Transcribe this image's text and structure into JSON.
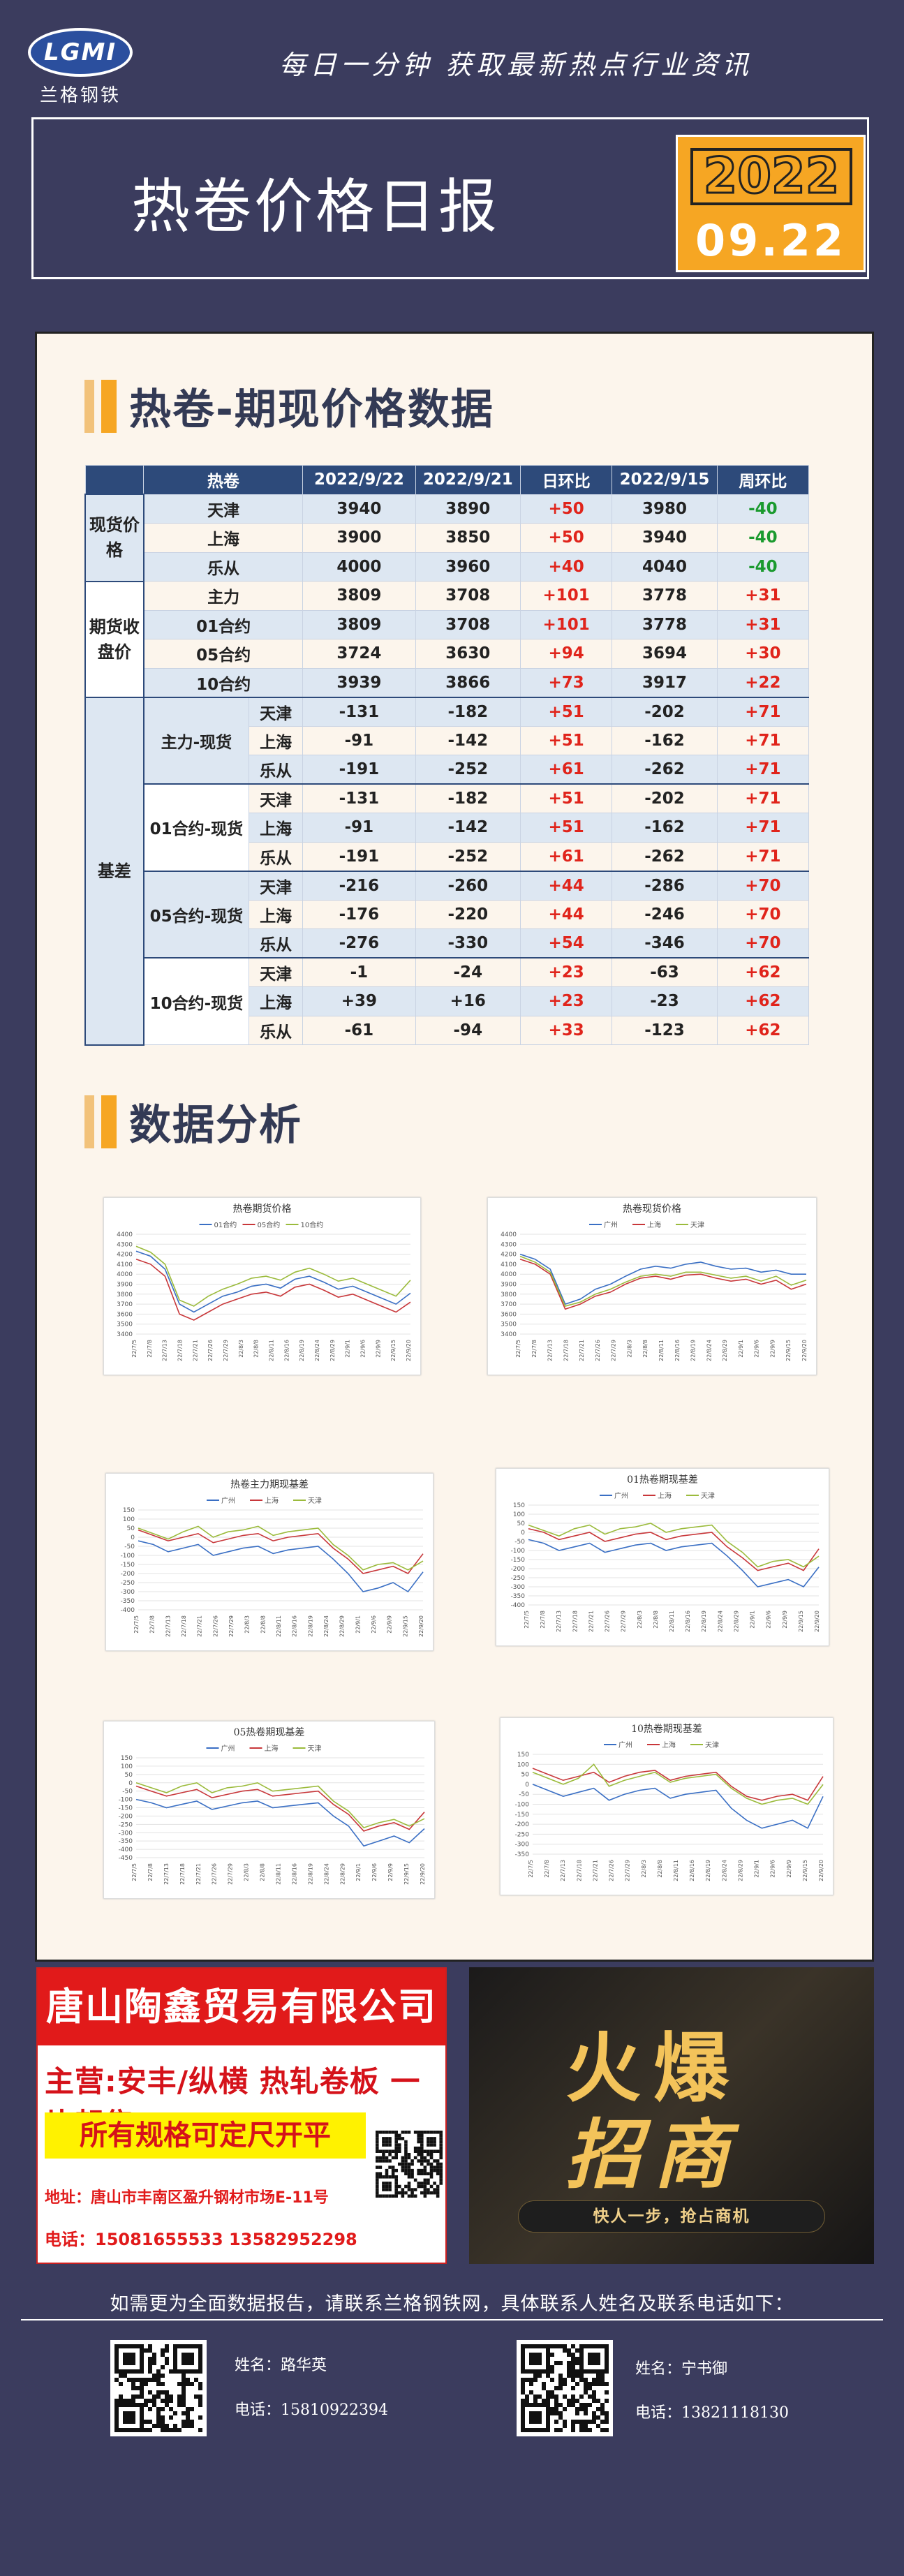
{
  "header": {
    "logo_text": "LGMI",
    "logo_cn": "兰格钢铁",
    "slogan": "每日一分钟  获取最新热点行业资讯",
    "title": "热卷价格日报",
    "year": "2022",
    "month_day": "09.22"
  },
  "section1": {
    "title": "热卷-期现价格数据"
  },
  "table": {
    "headers": [
      "热卷",
      "2022/9/22",
      "2022/9/21",
      "日环比",
      "2022/9/15",
      "周环比"
    ],
    "spot_group": "现货价格",
    "futures_group": "期货收盘价",
    "basis_group": "基差",
    "spot_rows": [
      {
        "label": "天津",
        "v1": "3940",
        "v2": "3890",
        "d": "+50",
        "v3": "3980",
        "w": "-40"
      },
      {
        "label": "上海",
        "v1": "3900",
        "v2": "3850",
        "d": "+50",
        "v3": "3940",
        "w": "-40"
      },
      {
        "label": "乐从",
        "v1": "4000",
        "v2": "3960",
        "d": "+40",
        "v3": "4040",
        "w": "-40"
      }
    ],
    "futures_rows": [
      {
        "label": "主力",
        "v1": "3809",
        "v2": "3708",
        "d": "+101",
        "v3": "3778",
        "w": "+31"
      },
      {
        "label": "01合约",
        "v1": "3809",
        "v2": "3708",
        "d": "+101",
        "v3": "3778",
        "w": "+31"
      },
      {
        "label": "05合约",
        "v1": "3724",
        "v2": "3630",
        "d": "+94",
        "v3": "3694",
        "w": "+30"
      },
      {
        "label": "10合约",
        "v1": "3939",
        "v2": "3866",
        "d": "+73",
        "v3": "3917",
        "w": "+22"
      }
    ],
    "basis_blocks": [
      {
        "label": "主力-现货",
        "rows": [
          {
            "city": "天津",
            "v1": "-131",
            "v2": "-182",
            "d": "+51",
            "v3": "-202",
            "w": "+71"
          },
          {
            "city": "上海",
            "v1": "-91",
            "v2": "-142",
            "d": "+51",
            "v3": "-162",
            "w": "+71"
          },
          {
            "city": "乐从",
            "v1": "-191",
            "v2": "-252",
            "d": "+61",
            "v3": "-262",
            "w": "+71"
          }
        ]
      },
      {
        "label": "01合约-现货",
        "rows": [
          {
            "city": "天津",
            "v1": "-131",
            "v2": "-182",
            "d": "+51",
            "v3": "-202",
            "w": "+71"
          },
          {
            "city": "上海",
            "v1": "-91",
            "v2": "-142",
            "d": "+51",
            "v3": "-162",
            "w": "+71"
          },
          {
            "city": "乐从",
            "v1": "-191",
            "v2": "-252",
            "d": "+61",
            "v3": "-262",
            "w": "+71"
          }
        ]
      },
      {
        "label": "05合约-现货",
        "rows": [
          {
            "city": "天津",
            "v1": "-216",
            "v2": "-260",
            "d": "+44",
            "v3": "-286",
            "w": "+70"
          },
          {
            "city": "上海",
            "v1": "-176",
            "v2": "-220",
            "d": "+44",
            "v3": "-246",
            "w": "+70"
          },
          {
            "city": "乐从",
            "v1": "-276",
            "v2": "-330",
            "d": "+54",
            "v3": "-346",
            "w": "+70"
          }
        ]
      },
      {
        "label": "10合约-现货",
        "rows": [
          {
            "city": "天津",
            "v1": "-1",
            "v2": "-24",
            "d": "+23",
            "v3": "-63",
            "w": "+62"
          },
          {
            "city": "上海",
            "v1": "+39",
            "v2": "+16",
            "d": "+23",
            "v3": "-23",
            "w": "+62"
          },
          {
            "city": "乐从",
            "v1": "-61",
            "v2": "-94",
            "d": "+33",
            "v3": "-123",
            "w": "+62"
          }
        ]
      }
    ]
  },
  "section2": {
    "title": "数据分析"
  },
  "colors": {
    "blue": "#3a6fc4",
    "red": "#c8373a",
    "green": "#9bbb3c",
    "accent": "#f6a623",
    "pos": "#e0241b",
    "neg": "#1a9a2e"
  },
  "chart_data": [
    {
      "type": "line",
      "title": "热卷期货价格",
      "legend": [
        "01合约",
        "05合约",
        "10合约"
      ],
      "yticks": [
        "4400",
        "4300",
        "4200",
        "4100",
        "4000",
        "3900",
        "3800",
        "3700",
        "3600",
        "3500",
        "3400"
      ],
      "ylim": [
        3400,
        4400
      ],
      "xticks": [
        "22/7/5",
        "22/7/8",
        "22/7/13",
        "22/7/18",
        "22/7/21",
        "22/7/26",
        "22/7/29",
        "22/8/3",
        "22/8/8",
        "22/8/11",
        "22/8/16",
        "22/8/19",
        "22/8/24",
        "22/8/29",
        "22/9/1",
        "22/9/6",
        "22/9/9",
        "22/9/15",
        "22/9/20"
      ],
      "series": [
        {
          "name": "01合约",
          "values": [
            4230,
            4180,
            4050,
            3700,
            3620,
            3700,
            3780,
            3820,
            3880,
            3900,
            3860,
            3950,
            3980,
            3920,
            3850,
            3880,
            3820,
            3760,
            3700,
            3810
          ]
        },
        {
          "name": "05合约",
          "values": [
            4150,
            4100,
            3980,
            3600,
            3540,
            3620,
            3700,
            3750,
            3800,
            3820,
            3780,
            3870,
            3900,
            3840,
            3770,
            3800,
            3740,
            3680,
            3620,
            3720
          ]
        },
        {
          "name": "10合约",
          "values": [
            4280,
            4220,
            4100,
            3740,
            3680,
            3780,
            3850,
            3900,
            3960,
            3980,
            3940,
            4020,
            4060,
            4000,
            3930,
            3960,
            3900,
            3840,
            3780,
            3940
          ]
        }
      ]
    },
    {
      "type": "line",
      "title": "热卷现货价格",
      "legend": [
        "广州",
        "上海",
        "天津"
      ],
      "yticks": [
        "4400",
        "4300",
        "4200",
        "4100",
        "4000",
        "3900",
        "3800",
        "3700",
        "3600",
        "3500",
        "3400"
      ],
      "ylim": [
        3400,
        4400
      ],
      "xticks": [
        "22/7/5",
        "22/7/8",
        "22/7/13",
        "22/7/18",
        "22/7/21",
        "22/7/26",
        "22/7/29",
        "22/8/3",
        "22/8/8",
        "22/8/11",
        "22/8/16",
        "22/8/19",
        "22/8/24",
        "22/8/29",
        "22/9/1",
        "22/9/6",
        "22/9/9",
        "22/9/15",
        "22/9/20"
      ],
      "series": [
        {
          "name": "广州",
          "values": [
            4200,
            4150,
            4050,
            3700,
            3750,
            3850,
            3900,
            3980,
            4050,
            4080,
            4060,
            4100,
            4120,
            4080,
            4050,
            4060,
            4020,
            4040,
            4000,
            4000
          ]
        },
        {
          "name": "上海",
          "values": [
            4150,
            4100,
            4000,
            3650,
            3700,
            3780,
            3820,
            3900,
            3960,
            3980,
            3950,
            3990,
            4000,
            3960,
            3930,
            3950,
            3900,
            3940,
            3850,
            3900
          ]
        },
        {
          "name": "天津",
          "values": [
            4180,
            4120,
            4020,
            3680,
            3720,
            3800,
            3850,
            3920,
            3980,
            4000,
            3980,
            4020,
            4020,
            3990,
            3960,
            3980,
            3930,
            3980,
            3890,
            3940
          ]
        }
      ]
    },
    {
      "type": "line",
      "title": "热卷主力期现基差",
      "legend": [
        "广州",
        "上海",
        "天津"
      ],
      "yticks": [
        "150",
        "100",
        "50",
        "0",
        "-50",
        "-100",
        "-150",
        "-200",
        "-250",
        "-300",
        "-350",
        "-400"
      ],
      "ylim": [
        -400,
        150
      ],
      "xticks": [
        "22/7/5",
        "22/7/8",
        "22/7/13",
        "22/7/18",
        "22/7/21",
        "22/7/26",
        "22/7/29",
        "22/8/3",
        "22/8/8",
        "22/8/11",
        "22/8/16",
        "22/8/19",
        "22/8/24",
        "22/8/29",
        "22/9/1",
        "22/9/6",
        "22/9/9",
        "22/9/15",
        "22/9/20"
      ],
      "series": [
        {
          "name": "广州",
          "values": [
            -20,
            -40,
            -80,
            -60,
            -40,
            -100,
            -80,
            -60,
            -50,
            -90,
            -70,
            -60,
            -50,
            -120,
            -200,
            -300,
            -280,
            -250,
            -300,
            -191
          ]
        },
        {
          "name": "上海",
          "values": [
            40,
            10,
            -20,
            0,
            20,
            -30,
            -10,
            10,
            20,
            -20,
            0,
            10,
            20,
            -60,
            -120,
            -200,
            -180,
            -160,
            -200,
            -91
          ]
        },
        {
          "name": "天津",
          "values": [
            50,
            20,
            -10,
            30,
            60,
            0,
            30,
            40,
            60,
            10,
            30,
            40,
            50,
            -40,
            -100,
            -180,
            -150,
            -140,
            -180,
            -131
          ]
        }
      ]
    },
    {
      "type": "line",
      "title": "01热卷期现基差",
      "legend": [
        "广州",
        "上海",
        "天津"
      ],
      "yticks": [
        "150",
        "100",
        "50",
        "0",
        "-50",
        "-100",
        "-150",
        "-200",
        "-250",
        "-300",
        "-350",
        "-400"
      ],
      "ylim": [
        -400,
        150
      ],
      "xticks": [
        "22/7/5",
        "22/7/8",
        "22/7/13",
        "22/7/18",
        "22/7/21",
        "22/7/26",
        "22/7/29",
        "22/8/3",
        "22/8/8",
        "22/8/11",
        "22/8/16",
        "22/8/19",
        "22/8/24",
        "22/8/29",
        "22/9/1",
        "22/9/6",
        "22/9/9",
        "22/9/15",
        "22/9/20"
      ],
      "series": [
        {
          "name": "广州",
          "values": [
            -40,
            -60,
            -100,
            -80,
            -60,
            -110,
            -90,
            -70,
            -60,
            -100,
            -80,
            -70,
            -60,
            -130,
            -210,
            -300,
            -280,
            -260,
            -300,
            -191
          ]
        },
        {
          "name": "上海",
          "values": [
            20,
            0,
            -40,
            -20,
            0,
            -50,
            -30,
            -10,
            0,
            -40,
            -20,
            -10,
            0,
            -80,
            -140,
            -210,
            -190,
            -170,
            -210,
            -91
          ]
        },
        {
          "name": "天津",
          "values": [
            40,
            10,
            -20,
            20,
            40,
            -10,
            20,
            30,
            50,
            0,
            20,
            30,
            40,
            -50,
            -110,
            -190,
            -160,
            -150,
            -190,
            -131
          ]
        }
      ]
    },
    {
      "type": "line",
      "title": "05热卷期现基差",
      "legend": [
        "广州",
        "上海",
        "天津"
      ],
      "yticks": [
        "150",
        "100",
        "50",
        "0",
        "-50",
        "-100",
        "-150",
        "-200",
        "-250",
        "-300",
        "-350",
        "-400",
        "-450"
      ],
      "ylim": [
        -450,
        150
      ],
      "xticks": [
        "22/7/5",
        "22/7/8",
        "22/7/13",
        "22/7/18",
        "22/7/21",
        "22/7/26",
        "22/7/29",
        "22/8/3",
        "22/8/8",
        "22/8/11",
        "22/8/16",
        "22/8/19",
        "22/8/24",
        "22/8/29",
        "22/9/1",
        "22/9/6",
        "22/9/9",
        "22/9/15",
        "22/9/20"
      ],
      "series": [
        {
          "name": "广州",
          "values": [
            -100,
            -120,
            -150,
            -130,
            -110,
            -160,
            -140,
            -120,
            -110,
            -150,
            -140,
            -130,
            -120,
            -200,
            -260,
            -380,
            -350,
            -320,
            -360,
            -276
          ]
        },
        {
          "name": "上海",
          "values": [
            -20,
            -50,
            -80,
            -60,
            -40,
            -90,
            -70,
            -50,
            -40,
            -80,
            -70,
            -60,
            -50,
            -130,
            -190,
            -290,
            -260,
            -240,
            -280,
            -176
          ]
        },
        {
          "name": "天津",
          "values": [
            0,
            -30,
            -60,
            -20,
            0,
            -60,
            -30,
            -20,
            0,
            -50,
            -40,
            -30,
            -20,
            -110,
            -170,
            -270,
            -240,
            -220,
            -260,
            -216
          ]
        }
      ]
    },
    {
      "type": "line",
      "title": "10热卷期现基差",
      "legend": [
        "广州",
        "上海",
        "天津"
      ],
      "yticks": [
        "150",
        "100",
        "50",
        "0",
        "-50",
        "-100",
        "-150",
        "-200",
        "-250",
        "-300",
        "-350"
      ],
      "ylim": [
        -350,
        150
      ],
      "xticks": [
        "22/7/5",
        "22/7/8",
        "22/7/13",
        "22/7/18",
        "22/7/21",
        "22/7/26",
        "22/7/29",
        "22/8/3",
        "22/8/8",
        "22/8/11",
        "22/8/16",
        "22/8/19",
        "22/8/24",
        "22/8/29",
        "22/9/1",
        "22/9/6",
        "22/9/9",
        "22/9/15",
        "22/9/20"
      ],
      "series": [
        {
          "name": "广州",
          "values": [
            0,
            -30,
            -60,
            -40,
            -20,
            -80,
            -50,
            -30,
            -20,
            -70,
            -50,
            -40,
            -30,
            -120,
            -180,
            -220,
            -200,
            -180,
            -220,
            -61
          ]
        },
        {
          "name": "上海",
          "values": [
            80,
            50,
            20,
            40,
            60,
            10,
            40,
            60,
            70,
            20,
            40,
            50,
            60,
            -10,
            -60,
            -80,
            -60,
            -50,
            -80,
            39
          ]
        },
        {
          "name": "天津",
          "values": [
            60,
            30,
            0,
            30,
            100,
            -10,
            20,
            40,
            60,
            10,
            30,
            40,
            50,
            -20,
            -70,
            -100,
            -80,
            -70,
            -100,
            -1
          ]
        }
      ]
    }
  ],
  "ad1": {
    "company": "唐山陶鑫贸易有限公司",
    "main": "主营:安丰/纵横 热轧卷板 一片起售",
    "slogan": "所有规格可定尺开平",
    "address": "地址：唐山市丰南区盈升钢材市场E-11号",
    "phone": "电话：15081655533    13582952298"
  },
  "ad2": {
    "line1": "火爆",
    "line2": "招商",
    "strip": "快人一步，抢占商机"
  },
  "contact": {
    "intro": "如需更为全面数据报告，请联系兰格钢铁网，具体联系人姓名及联系电话如下：",
    "people": [
      {
        "name": "姓名：路华英",
        "phone": "电话：15810922394"
      },
      {
        "name": "姓名：宁书御",
        "phone": "电话：13821118130"
      }
    ]
  }
}
